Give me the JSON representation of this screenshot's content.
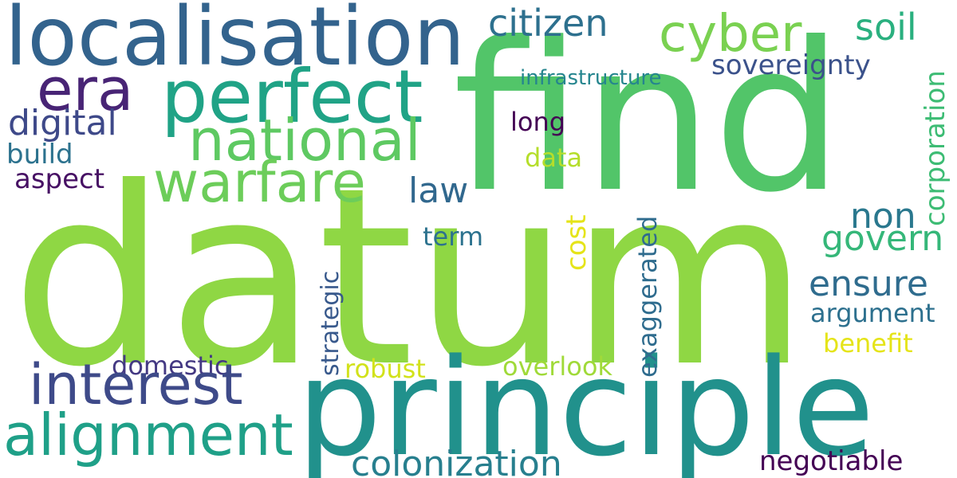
{
  "words": [
    {
      "key": "datum",
      "text": "datum",
      "color": "#8fd744"
    },
    {
      "key": "find",
      "text": "find",
      "color": "#52c569"
    },
    {
      "key": "principle",
      "text": "principle",
      "color": "#21918c"
    },
    {
      "key": "localisation",
      "text": "localisation",
      "color": "#33638d"
    },
    {
      "key": "perfect",
      "text": "perfect",
      "color": "#20a386"
    },
    {
      "key": "national",
      "text": "national",
      "color": "#5ec962"
    },
    {
      "key": "warfare",
      "text": "warfare",
      "color": "#6ccd5a"
    },
    {
      "key": "era",
      "text": "era",
      "color": "#482475"
    },
    {
      "key": "cyber",
      "text": "cyber",
      "color": "#7ad151"
    },
    {
      "key": "citizen",
      "text": "citizen",
      "color": "#2d708e"
    },
    {
      "key": "soil",
      "text": "soil",
      "color": "#2ab07f"
    },
    {
      "key": "sovereignty",
      "text": "sovereignty",
      "color": "#3b528b"
    },
    {
      "key": "infrastructure",
      "text": "infrastructure",
      "color": "#25858e"
    },
    {
      "key": "digital",
      "text": "digital",
      "color": "#3e4989"
    },
    {
      "key": "long",
      "text": "long",
      "color": "#440154"
    },
    {
      "key": "build",
      "text": "build",
      "color": "#2c728e"
    },
    {
      "key": "data",
      "text": "data",
      "color": "#b5de2b"
    },
    {
      "key": "aspect",
      "text": "aspect",
      "color": "#471164"
    },
    {
      "key": "law",
      "text": "law",
      "color": "#31688e"
    },
    {
      "key": "non",
      "text": "non",
      "color": "#2a788e"
    },
    {
      "key": "govern",
      "text": "govern",
      "color": "#35b779"
    },
    {
      "key": "corporation",
      "text": "corporation",
      "color": "#3dbc74"
    },
    {
      "key": "term",
      "text": "term",
      "color": "#2c728e"
    },
    {
      "key": "cost",
      "text": "cost",
      "color": "#e5e419"
    },
    {
      "key": "exaggerated",
      "text": "exaggerated",
      "color": "#2f6c8e"
    },
    {
      "key": "ensure",
      "text": "ensure",
      "color": "#2f6c8e"
    },
    {
      "key": "argument",
      "text": "argument",
      "color": "#2d708e"
    },
    {
      "key": "benefit",
      "text": "benefit",
      "color": "#e5e419"
    },
    {
      "key": "strategic",
      "text": "strategic",
      "color": "#38598c"
    },
    {
      "key": "domestic",
      "text": "domestic",
      "color": "#443983"
    },
    {
      "key": "robust",
      "text": "robust",
      "color": "#d2e21b"
    },
    {
      "key": "overlook",
      "text": "overlook",
      "color": "#a0da39"
    },
    {
      "key": "interest",
      "text": "interest",
      "color": "#3e4a89"
    },
    {
      "key": "alignment",
      "text": "alignment",
      "color": "#1fa088"
    },
    {
      "key": "colonization",
      "text": "colonization",
      "color": "#277f8e"
    },
    {
      "key": "negotiable",
      "text": "negotiable",
      "color": "#440154"
    }
  ]
}
